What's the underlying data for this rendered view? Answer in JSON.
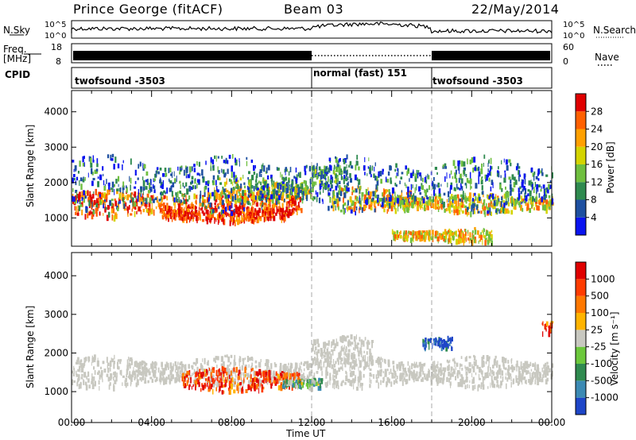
{
  "header": {
    "station": "Prince George (fitACF)",
    "beam": "Beam 03",
    "date": "22/May/2014"
  },
  "summary": {
    "nsky_label": "N.Sky",
    "nsky_ticks": [
      "10^5",
      "10^0"
    ],
    "nsearch_label": "N.Search",
    "nsearch_ticks": [
      "10^5",
      "10^0"
    ],
    "freq_label": "Freq.",
    "freq_unit": "[MHz]",
    "freq_ticks": [
      "18",
      "8"
    ],
    "nave_label": "Nave",
    "nave_ticks": [
      "60",
      "0"
    ],
    "cpid_label": "CPID",
    "cpid_segments": [
      {
        "label": "twofsound -3503",
        "start_hour": 0,
        "end_hour": 12
      },
      {
        "label": "normal (fast) 151",
        "start_hour": 12,
        "end_hour": 18
      },
      {
        "label": "twofsound -3503",
        "start_hour": 18,
        "end_hour": 24
      }
    ]
  },
  "chart_data": [
    {
      "type": "heatmap",
      "name": "power",
      "ylabel": "Slant Range [km]",
      "yticks": [
        "1000",
        "2000",
        "3000",
        "4000"
      ],
      "ylim": [
        200,
        4600
      ],
      "xlim": [
        0,
        24
      ],
      "colorbar_label": "Power [dB]",
      "colorbar_ticks": [
        "4",
        "8",
        "12",
        "16",
        "20",
        "24",
        "28"
      ],
      "colors": [
        "#0a14f0",
        "#1e50a0",
        "#2f8a4f",
        "#6fbf3f",
        "#d4d400",
        "#ffa000",
        "#ff6000",
        "#e00000"
      ],
      "bands": [
        {
          "start": 0.0,
          "end": 11.5,
          "center": 1450,
          "width": 600,
          "level": 0.82
        },
        {
          "start": 4.5,
          "end": 11.0,
          "center": 1150,
          "width": 350,
          "level": 0.9
        },
        {
          "start": 7.0,
          "end": 12.0,
          "center": 1850,
          "width": 500,
          "level": 0.55
        },
        {
          "start": 13.0,
          "end": 17.0,
          "center": 1600,
          "width": 500,
          "level": 0.65
        },
        {
          "start": 15.5,
          "end": 24.0,
          "center": 1450,
          "width": 450,
          "level": 0.6
        },
        {
          "start": 16.0,
          "end": 21.0,
          "center": 550,
          "width": 300,
          "level": 0.6
        },
        {
          "start": 12.0,
          "end": 14.0,
          "center": 2200,
          "width": 600,
          "level": 0.3
        },
        {
          "start": 0.0,
          "end": 24.0,
          "center": 2000,
          "width": 1300,
          "level": 0.25
        }
      ]
    },
    {
      "type": "heatmap",
      "name": "velocity",
      "ylabel": "Slant Range [km]",
      "yticks": [
        "1000",
        "2000",
        "3000",
        "4000"
      ],
      "ylim": [
        200,
        4600
      ],
      "xlim": [
        0,
        24
      ],
      "colorbar_label": "Velocity [m s⁻¹]",
      "colorbar_ticks": [
        "1000",
        "500",
        "100",
        "25",
        "-25",
        "-100",
        "-500",
        "-1000"
      ],
      "colors": [
        "#1e46c8",
        "#3c8ab4",
        "#2f8a4f",
        "#6cc83c",
        "#c8c8c0",
        "#ffb400",
        "#ff7800",
        "#ff3c00",
        "#e00000"
      ],
      "bands": [
        {
          "start": 0.0,
          "end": 24.0,
          "center": 1550,
          "width": 650,
          "level": 0.5,
          "kind": "ground"
        },
        {
          "start": 5.5,
          "end": 11.5,
          "center": 1350,
          "width": 500,
          "level": 0.85
        },
        {
          "start": 10.5,
          "end": 12.5,
          "center": 1250,
          "width": 250,
          "level": 0.35
        },
        {
          "start": 12.0,
          "end": 15.0,
          "center": 2100,
          "width": 600,
          "level": 0.5,
          "kind": "ground"
        },
        {
          "start": 17.5,
          "end": 19.0,
          "center": 2300,
          "width": 300,
          "level": 0.05
        },
        {
          "start": 23.5,
          "end": 24.0,
          "center": 2700,
          "width": 400,
          "level": 0.85
        }
      ]
    }
  ],
  "xaxis": {
    "label": "Time UT",
    "ticks": [
      "00:00",
      "04:00",
      "08:00",
      "12:00",
      "16:00",
      "20:00",
      "00:00"
    ]
  }
}
